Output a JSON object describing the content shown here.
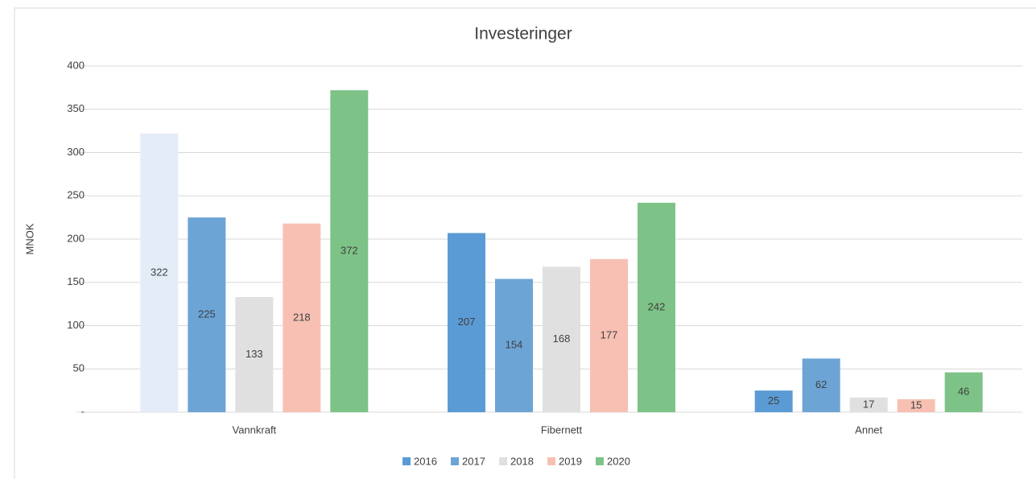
{
  "chart_data": {
    "type": "bar",
    "title": "Investeringer",
    "y_label": "MNOK",
    "categories": [
      "Vannkraft",
      "Fibernett",
      "Annet"
    ],
    "series": [
      {
        "name": "2016",
        "color": "#5b9bd5",
        "point_colors": [
          "#e4ecf7",
          "#5b9bd5",
          "#5b9bd5"
        ],
        "values": [
          322,
          207,
          25
        ]
      },
      {
        "name": "2017",
        "color": "#6ca4d6",
        "values": [
          225,
          154,
          62
        ]
      },
      {
        "name": "2018",
        "color": "#e0e0e0",
        "values": [
          133,
          168,
          17
        ]
      },
      {
        "name": "2019",
        "color": "#f7c0b3",
        "values": [
          218,
          177,
          15
        ]
      },
      {
        "name": "2020",
        "color": "#7dc387",
        "values": [
          372,
          242,
          46
        ]
      }
    ],
    "ylim": [
      0,
      400
    ],
    "yticks": [
      {
        "value": 0,
        "label": "-"
      },
      50,
      100,
      150,
      200,
      250,
      300,
      350,
      400
    ],
    "grid": true,
    "legend": "bottom"
  }
}
